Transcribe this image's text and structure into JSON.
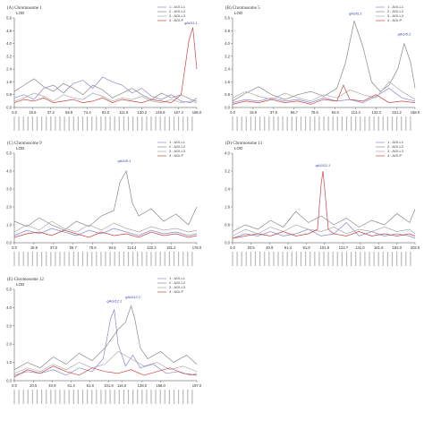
{
  "chart_data": [
    {
      "type": "line",
      "title": "(A) Chromosome 1",
      "ylabel": "LOD",
      "ylim": [
        0,
        5.6
      ],
      "yticks": [
        "0.0",
        "0.8",
        "1.6",
        "2.4",
        "3.2",
        "4.0",
        "4.8",
        "5.6"
      ],
      "xlim": [
        0,
        186
      ],
      "xticks": [
        "0.0",
        "18.6",
        "37.2",
        "55.8",
        "74.4",
        "93.0",
        "111.6",
        "130.2",
        "148.8",
        "167.4",
        "186.0"
      ],
      "legend": [
        "1 : AGI-L1",
        "2 : AGI-L2",
        "3 : AGI-L3",
        "4 : AGI-P"
      ],
      "qtl_labels": [
        {
          "text": "qAGI1.1",
          "x": 180,
          "y": 5.2
        }
      ],
      "series": [
        {
          "name": "1 : AGI-L1",
          "color": "#8888cc",
          "x": [
            0,
            10,
            20,
            30,
            40,
            50,
            60,
            70,
            80,
            90,
            100,
            110,
            120,
            130,
            140,
            150,
            160,
            170,
            180,
            186
          ],
          "y": [
            0.6,
            0.8,
            0.5,
            1.2,
            1.4,
            0.9,
            1.5,
            1.7,
            1.2,
            1.9,
            1.6,
            1.4,
            0.9,
            1.2,
            0.7,
            0.5,
            0.8,
            0.4,
            0.3,
            0.6
          ]
        },
        {
          "name": "2 : AGI-L2",
          "color": "#888888",
          "x": [
            0,
            10,
            20,
            30,
            40,
            50,
            60,
            70,
            80,
            90,
            100,
            110,
            120,
            130,
            140,
            150,
            160,
            170,
            180,
            186
          ],
          "y": [
            1.0,
            1.4,
            1.8,
            1.3,
            1.0,
            1.5,
            1.2,
            0.8,
            1.4,
            1.1,
            0.6,
            0.9,
            1.2,
            0.8,
            0.5,
            0.9,
            0.6,
            0.8,
            0.5,
            0.4
          ]
        },
        {
          "name": "3 : AGI-L3",
          "color": "#aaaaaa",
          "x": [
            0,
            10,
            20,
            30,
            40,
            50,
            60,
            70,
            80,
            90,
            100,
            110,
            120,
            130,
            140,
            150,
            160,
            170,
            180,
            186
          ],
          "y": [
            0.4,
            0.6,
            0.9,
            0.7,
            0.4,
            0.8,
            0.6,
            0.5,
            0.9,
            0.7,
            0.4,
            0.6,
            0.5,
            0.7,
            0.4,
            0.3,
            0.5,
            0.3,
            0.4,
            0.3
          ]
        },
        {
          "name": "4 : AGI-P",
          "color": "#cc4444",
          "x": [
            0,
            10,
            20,
            30,
            40,
            50,
            60,
            70,
            80,
            90,
            100,
            110,
            120,
            130,
            140,
            150,
            160,
            170,
            178,
            182,
            186
          ],
          "y": [
            0.3,
            0.5,
            0.4,
            0.6,
            0.3,
            0.4,
            0.5,
            0.3,
            0.4,
            0.6,
            0.3,
            0.5,
            0.4,
            0.3,
            0.5,
            0.4,
            0.3,
            0.8,
            4.2,
            5.0,
            2.4
          ]
        }
      ]
    },
    {
      "type": "line",
      "title": "(B) Chromosome 5",
      "ylabel": "LOD",
      "ylim": [
        0,
        5.6
      ],
      "yticks": [
        "0.0",
        "0.8",
        "1.6",
        "2.4",
        "3.2",
        "4.0",
        "4.8",
        "5.6"
      ],
      "xlim": [
        0,
        168
      ],
      "xticks": [
        "0.0",
        "18.9",
        "37.8",
        "56.7",
        "75.6",
        "94.5",
        "113.4",
        "132.3",
        "151.2",
        "168.0"
      ],
      "legend": [
        "1 : AGI-L1",
        "2 : AGI-L2",
        "3 : AGI-L3",
        "4 : AGI-P"
      ],
      "qtl_labels": [
        {
          "text": "qAGI5.1",
          "x": 113,
          "y": 5.8
        },
        {
          "text": "qAGI5.2",
          "x": 158,
          "y": 4.5
        }
      ],
      "series": [
        {
          "name": "1 : AGI-L1",
          "color": "#8888cc",
          "x": [
            0,
            12,
            24,
            36,
            48,
            60,
            72,
            84,
            96,
            108,
            120,
            132,
            144,
            156,
            168
          ],
          "y": [
            0.3,
            0.5,
            0.4,
            0.6,
            0.4,
            0.5,
            0.3,
            0.6,
            0.4,
            0.5,
            0.3,
            0.7,
            1.2,
            0.6,
            0.4
          ]
        },
        {
          "name": "2 : AGI-L2",
          "color": "#888888",
          "x": [
            0,
            12,
            24,
            36,
            48,
            60,
            72,
            84,
            96,
            104,
            112,
            120,
            128,
            136,
            144,
            152,
            158,
            164,
            168
          ],
          "y": [
            0.4,
            0.9,
            1.3,
            0.8,
            0.5,
            0.8,
            1.0,
            0.7,
            1.2,
            2.8,
            5.4,
            3.8,
            1.6,
            1.0,
            1.4,
            2.4,
            4.0,
            2.8,
            1.2
          ]
        },
        {
          "name": "3 : AGI-L3",
          "color": "#aaaaaa",
          "x": [
            0,
            12,
            24,
            36,
            48,
            60,
            72,
            84,
            96,
            108,
            120,
            132,
            144,
            156,
            168
          ],
          "y": [
            0.6,
            1.0,
            0.7,
            0.5,
            0.9,
            0.6,
            0.4,
            0.8,
            0.6,
            1.1,
            0.8,
            0.6,
            1.6,
            1.0,
            0.5
          ]
        },
        {
          "name": "4 : AGI-P",
          "color": "#cc4444",
          "x": [
            0,
            12,
            24,
            36,
            48,
            60,
            72,
            84,
            96,
            102,
            108,
            120,
            132,
            144,
            156,
            168
          ],
          "y": [
            0.2,
            0.4,
            0.3,
            0.5,
            0.3,
            0.4,
            0.2,
            0.5,
            0.4,
            1.4,
            0.5,
            0.4,
            0.8,
            0.3,
            0.4,
            0.3
          ]
        }
      ]
    },
    {
      "type": "line",
      "title": "(C) Chromosome 9",
      "ylabel": "LOD",
      "ylim": [
        0,
        5.0
      ],
      "yticks": [
        "0.0",
        "1.0",
        "2.0",
        "3.0",
        "4.0",
        "5.0"
      ],
      "xlim": [
        0,
        176
      ],
      "xticks": [
        "0.0",
        "18.9",
        "37.8",
        "56.7",
        "75.6",
        "94.5",
        "113.4",
        "132.3",
        "151.2",
        "176.0"
      ],
      "legend": [
        "1 : AGI-L1",
        "2 : AGI-L2",
        "3 : AGI-L3",
        "4 : AGI-P"
      ],
      "qtl_labels": [
        {
          "text": "qAGI9.1",
          "x": 106,
          "y": 4.5
        }
      ],
      "series": [
        {
          "name": "1 : AGI-L1",
          "color": "#8888cc",
          "x": [
            0,
            12,
            24,
            36,
            48,
            60,
            72,
            84,
            96,
            108,
            120,
            132,
            144,
            156,
            168,
            176
          ],
          "y": [
            0.4,
            0.7,
            0.5,
            0.8,
            0.6,
            0.4,
            0.7,
            0.5,
            0.8,
            0.6,
            0.4,
            0.7,
            0.5,
            0.6,
            0.4,
            0.5
          ]
        },
        {
          "name": "2 : AGI-L2",
          "color": "#888888",
          "x": [
            0,
            12,
            24,
            36,
            48,
            60,
            72,
            84,
            96,
            102,
            108,
            114,
            120,
            132,
            144,
            156,
            168,
            176
          ],
          "y": [
            1.2,
            0.9,
            1.4,
            1.0,
            0.7,
            1.2,
            0.9,
            1.5,
            1.8,
            3.4,
            4.0,
            2.2,
            1.5,
            1.9,
            1.2,
            1.6,
            1.0,
            2.0
          ]
        },
        {
          "name": "3 : AGI-L3",
          "color": "#aaaaaa",
          "x": [
            0,
            12,
            24,
            36,
            48,
            60,
            72,
            84,
            96,
            108,
            120,
            132,
            144,
            156,
            168,
            176
          ],
          "y": [
            0.6,
            1.0,
            0.7,
            1.2,
            0.8,
            0.6,
            1.0,
            0.7,
            1.1,
            0.8,
            0.6,
            0.9,
            0.7,
            0.8,
            0.6,
            0.7
          ]
        },
        {
          "name": "4 : AGI-P",
          "color": "#cc4444",
          "x": [
            0,
            12,
            24,
            36,
            48,
            60,
            72,
            84,
            96,
            108,
            120,
            132,
            144,
            156,
            168,
            176
          ],
          "y": [
            0.3,
            0.5,
            0.6,
            0.4,
            0.7,
            0.5,
            0.3,
            0.6,
            0.4,
            0.5,
            0.3,
            0.6,
            0.4,
            0.5,
            0.3,
            0.4
          ]
        }
      ]
    },
    {
      "type": "line",
      "title": "(D) Chromosome 11",
      "ylabel": "LOD",
      "ylim": [
        0,
        4.0
      ],
      "yticks": [
        "0.0",
        "0.8",
        "1.6",
        "2.4",
        "3.2",
        "4.0"
      ],
      "xlim": [
        0,
        202
      ],
      "xticks": [
        "0.0",
        "20.5",
        "40.9",
        "61.4",
        "81.8",
        "101.8",
        "122.7",
        "141.0",
        "161.6",
        "182.0",
        "202.0"
      ],
      "legend": [
        "1 : AGI-L1",
        "2 : AGI-L2",
        "3 : AGI-L3",
        "4 : AGI-P"
      ],
      "qtl_labels": [
        {
          "text": "qAGI11.1",
          "x": 100,
          "y": 3.4
        }
      ],
      "series": [
        {
          "name": "1 : AGI-L1",
          "color": "#8888cc",
          "x": [
            0,
            14,
            28,
            42,
            56,
            70,
            84,
            98,
            112,
            126,
            140,
            154,
            168,
            182,
            196,
            202
          ],
          "y": [
            0.2,
            0.4,
            0.3,
            0.5,
            0.3,
            0.4,
            0.6,
            0.3,
            0.4,
            0.9,
            0.3,
            0.5,
            0.3,
            0.4,
            0.3,
            0.2
          ]
        },
        {
          "name": "2 : AGI-L2",
          "color": "#888888",
          "x": [
            0,
            14,
            28,
            42,
            56,
            70,
            84,
            98,
            112,
            126,
            140,
            154,
            168,
            182,
            196,
            202
          ],
          "y": [
            0.5,
            0.8,
            0.6,
            1.0,
            0.7,
            1.4,
            0.9,
            1.2,
            0.8,
            1.1,
            0.7,
            1.0,
            0.8,
            1.3,
            0.9,
            1.5
          ]
        },
        {
          "name": "3 : AGI-L3",
          "color": "#aaaaaa",
          "x": [
            0,
            14,
            28,
            42,
            56,
            70,
            84,
            98,
            112,
            126,
            140,
            154,
            168,
            182,
            196,
            202
          ],
          "y": [
            0.3,
            0.6,
            0.4,
            0.7,
            0.5,
            0.8,
            0.6,
            0.5,
            0.7,
            0.4,
            0.6,
            0.5,
            0.7,
            0.5,
            0.6,
            0.4
          ]
        },
        {
          "name": "4 : AGI-P",
          "color": "#cc4444",
          "x": [
            0,
            14,
            28,
            42,
            56,
            70,
            84,
            94,
            98,
            100,
            102,
            106,
            112,
            126,
            140,
            154,
            168,
            182,
            196,
            202
          ],
          "y": [
            0.2,
            0.3,
            0.4,
            0.3,
            0.5,
            0.3,
            0.4,
            0.6,
            2.6,
            3.2,
            2.4,
            0.6,
            0.4,
            0.3,
            0.5,
            0.3,
            0.4,
            0.3,
            0.4,
            0.3
          ]
        }
      ]
    },
    {
      "type": "line",
      "title": "(E) Chromosome 12",
      "ylabel": "LOD",
      "ylim": [
        0,
        5.0
      ],
      "yticks": [
        "0.0",
        "1.0",
        "2.0",
        "3.0",
        "4.0",
        "5.0"
      ],
      "xlim": [
        0,
        197
      ],
      "xticks": [
        "0.0",
        "20.5",
        "40.9",
        "61.4",
        "81.8",
        "101.8",
        "116.0",
        "138.0",
        "158.0",
        "197.0"
      ],
      "legend": [
        "1 : AGI-L1",
        "2 : AGI-L2",
        "3 : AGI-L3",
        "4 : AGI-P"
      ],
      "qtl_labels": [
        {
          "text": "qAGI12.1",
          "x": 108,
          "y": 4.3
        },
        {
          "text": "qAGI12.2",
          "x": 128,
          "y": 4.5
        }
      ],
      "series": [
        {
          "name": "1 : AGI-L1",
          "color": "#8888cc",
          "x": [
            0,
            14,
            28,
            42,
            56,
            70,
            84,
            96,
            104,
            108,
            112,
            120,
            128,
            136,
            150,
            164,
            178,
            190,
            197
          ],
          "y": [
            0.3,
            0.5,
            0.4,
            0.6,
            0.3,
            0.7,
            0.5,
            1.2,
            3.4,
            3.9,
            2.0,
            0.8,
            1.4,
            0.7,
            0.9,
            0.4,
            0.5,
            0.3,
            0.4
          ]
        },
        {
          "name": "2 : AGI-L2",
          "color": "#888888",
          "x": [
            0,
            14,
            28,
            42,
            56,
            70,
            84,
            98,
            112,
            120,
            126,
            130,
            136,
            144,
            158,
            172,
            186,
            197
          ],
          "y": [
            0.6,
            1.0,
            0.7,
            1.3,
            0.9,
            1.5,
            1.1,
            1.8,
            2.8,
            3.2,
            4.1,
            3.4,
            1.8,
            1.2,
            1.6,
            1.0,
            1.4,
            0.9
          ]
        },
        {
          "name": "3 : AGI-L3",
          "color": "#aaaaaa",
          "x": [
            0,
            14,
            28,
            42,
            56,
            70,
            84,
            98,
            112,
            126,
            140,
            154,
            168,
            182,
            197
          ],
          "y": [
            0.4,
            0.7,
            0.5,
            0.9,
            0.6,
            1.0,
            0.7,
            0.9,
            1.6,
            1.2,
            0.8,
            1.0,
            0.6,
            0.8,
            0.5
          ]
        },
        {
          "name": "4 : AGI-P",
          "color": "#cc4444",
          "x": [
            0,
            14,
            28,
            42,
            56,
            70,
            84,
            98,
            112,
            126,
            140,
            154,
            168,
            182,
            197
          ],
          "y": [
            0.2,
            0.6,
            0.4,
            0.8,
            0.5,
            0.3,
            0.7,
            0.5,
            0.4,
            0.6,
            0.3,
            0.5,
            0.7,
            0.4,
            0.3
          ]
        }
      ]
    }
  ]
}
